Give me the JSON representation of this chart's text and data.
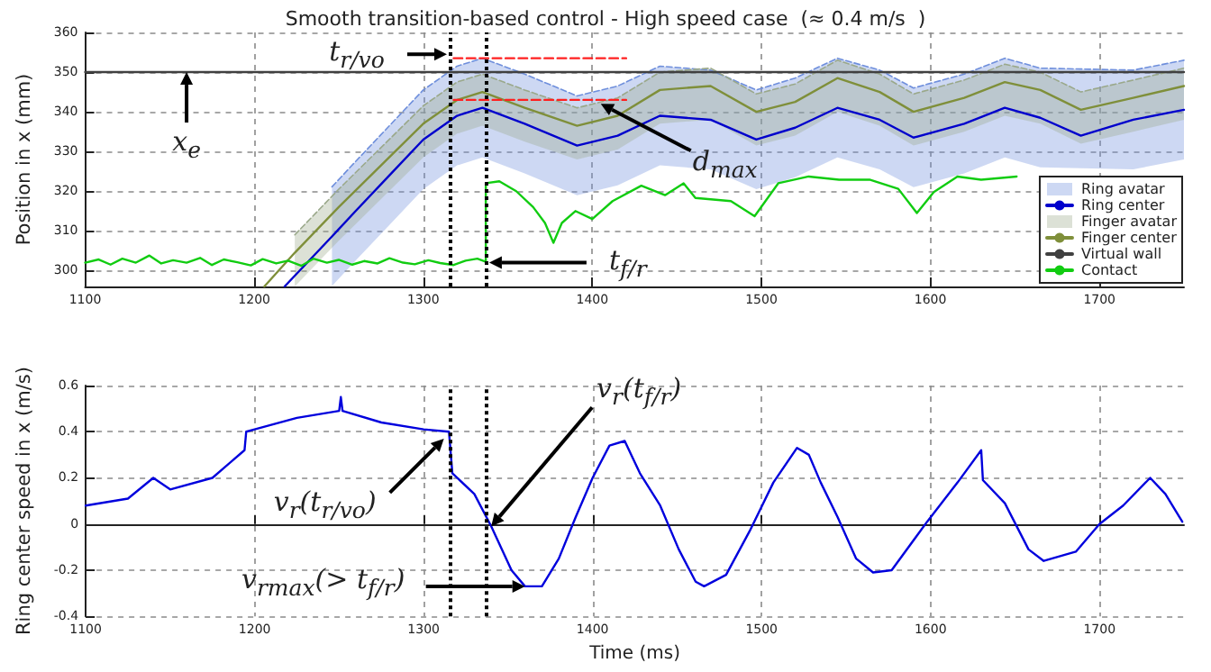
{
  "chart_data": [
    {
      "type": "line",
      "title": "Smooth transition-based control - High speed case  (≈ 0.4 m/s  )",
      "ylabel": "Position in x (mm)",
      "xlim": [
        1100,
        1750
      ],
      "xticks": [
        1100,
        1200,
        1300,
        1400,
        1500,
        1600,
        1700
      ],
      "ylim": [
        296,
        360
      ],
      "yticks": [
        300,
        310,
        320,
        330,
        340,
        350,
        360
      ],
      "grid": true,
      "legend": "bottom right",
      "ref_lines": [
        {
          "axis": "x",
          "value": 1316,
          "color": "#000000",
          "line_style": "dotted"
        },
        {
          "axis": "x",
          "value": 1337,
          "color": "#000000",
          "line_style": "dotted"
        }
      ],
      "annotations": [
        {
          "text": "t$_{r/vo}$",
          "x": 1314,
          "y": 354.5
        },
        {
          "text": "x$_{e}$",
          "x": 1160,
          "y": 350
        },
        {
          "text": "d$_{max}$",
          "x": 1405,
          "y": 342
        },
        {
          "text": "t$_{f/r}$",
          "x": 1339,
          "y": 302
        }
      ],
      "series": [
        {
          "name": "Ring avatar",
          "color": "#6f8fdc",
          "line_style": "dashed",
          "x": [
            1246,
            1260,
            1280,
            1300,
            1320,
            1335,
            1360,
            1391,
            1415,
            1440,
            1470,
            1497,
            1520,
            1545,
            1570,
            1590,
            1620,
            1644,
            1665,
            1720,
            1750
          ],
          "lower": [
            296.1,
            302.5,
            311.5,
            320.5,
            326.5,
            328.5,
            324.5,
            319,
            321.5,
            326.5,
            325.5,
            320.5,
            323.5,
            328.5,
            325.5,
            321,
            324.5,
            328.5,
            326,
            325.5,
            328
          ],
          "values": [
            321.1,
            327.5,
            336.5,
            345.5,
            351.5,
            353.5,
            349.5,
            344,
            346.5,
            351.5,
            350.5,
            345.5,
            348.5,
            353.5,
            350.5,
            346,
            349.5,
            353.5,
            351,
            350.5,
            353
          ],
          "upper": [
            321.1,
            327.5,
            336.5,
            345.5,
            351.5,
            353.5,
            349.5,
            344,
            346.5,
            351.5,
            350.5,
            345.5,
            348.5,
            353.5,
            350.5,
            346,
            349.5,
            353.5,
            351,
            350.5,
            353
          ]
        },
        {
          "name": "Ring center",
          "color": "#0000cc",
          "x": [
            1218,
            1246,
            1260,
            1280,
            1300,
            1320,
            1335,
            1360,
            1391,
            1415,
            1440,
            1470,
            1497,
            1520,
            1545,
            1570,
            1590,
            1620,
            1644,
            1665,
            1689,
            1720,
            1750
          ],
          "values": [
            296,
            308.6,
            315,
            324,
            333,
            339,
            341,
            337,
            331.5,
            334,
            339,
            338,
            333,
            336,
            341,
            338,
            333.5,
            337,
            341,
            338.5,
            334,
            338,
            340.5
          ]
        },
        {
          "name": "Finger avatar",
          "color": "#9aa88a",
          "line_style": "dashed",
          "x": [
            1224,
            1250,
            1300,
            1320,
            1335,
            1360,
            1391,
            1415,
            1440,
            1470,
            1497,
            1520,
            1545,
            1570,
            1590,
            1620,
            1644,
            1665,
            1689,
            1720,
            1750
          ],
          "lower": [
            296,
            307.5,
            328.5,
            334.5,
            336.5,
            332.5,
            328,
            330.5,
            337,
            338,
            331.5,
            334,
            340,
            336.5,
            331.5,
            335,
            339,
            337,
            332,
            335,
            338
          ],
          "values": [
            309,
            320.5,
            341.5,
            347.5,
            349.5,
            345.5,
            341,
            343.5,
            350,
            351,
            344.5,
            347,
            353,
            349.5,
            344.5,
            348,
            352,
            350,
            345,
            348,
            351
          ],
          "upper": [
            309,
            320.5,
            341.5,
            347.5,
            349.5,
            345.5,
            341,
            343.5,
            350,
            351,
            344.5,
            347,
            353,
            349.5,
            344.5,
            348,
            352,
            350,
            345,
            348,
            351
          ]
        },
        {
          "name": "Finger center",
          "color": "#7f8f3a",
          "x": [
            1206,
            1224,
            1250,
            1300,
            1320,
            1335,
            1360,
            1391,
            1415,
            1440,
            1470,
            1497,
            1520,
            1545,
            1570,
            1590,
            1620,
            1644,
            1665,
            1689,
            1720,
            1750
          ],
          "values": [
            296,
            304.5,
            316,
            337,
            343,
            345,
            341,
            336.5,
            339,
            345.5,
            346.5,
            340,
            342.5,
            348.5,
            345,
            340,
            343.5,
            347.5,
            345.5,
            340.5,
            343.5,
            346.5
          ]
        },
        {
          "name": "Virtual wall",
          "color": "#404040",
          "x": [
            1100,
            1750
          ],
          "values": [
            350,
            350
          ]
        },
        {
          "name": "Contact",
          "color": "#11cc11",
          "x": [
            1100,
            1108,
            1115,
            1122,
            1130,
            1138,
            1145,
            1152,
            1160,
            1168,
            1175,
            1182,
            1190,
            1198,
            1205,
            1213,
            1220,
            1228,
            1235,
            1243,
            1250,
            1258,
            1265,
            1273,
            1280,
            1288,
            1295,
            1303,
            1310,
            1318,
            1325,
            1332,
            1337,
            1337,
            1345,
            1355,
            1365,
            1372,
            1377,
            1382,
            1390,
            1400,
            1412,
            1429,
            1443,
            1454,
            1461,
            1482,
            1496,
            1510,
            1528,
            1546,
            1564,
            1581,
            1592,
            1602,
            1616,
            1630,
            1651
          ],
          "values": [
            302,
            302.8,
            301.5,
            303,
            302,
            303.8,
            301.8,
            302.6,
            302,
            303.2,
            301.4,
            302.8,
            302.1,
            301.3,
            302.9,
            301.8,
            302.5,
            301.2,
            303,
            302,
            302.7,
            301.5,
            302.4,
            301.8,
            303.1,
            302,
            301.6,
            302.6,
            301.9,
            301.4,
            302.5,
            303,
            302.2,
            322,
            322.5,
            320,
            316,
            312,
            307,
            312,
            315,
            313,
            317.5,
            321.4,
            319,
            322,
            318.3,
            317.5,
            313.7,
            322,
            323.7,
            322.9,
            322.9,
            320.6,
            314.5,
            319.8,
            323.7,
            322.9,
            323.7
          ]
        },
        {
          "color": "#ff2020",
          "line_style": "dashed",
          "x": [
            1318,
            1420
          ],
          "values": [
            353.5,
            353.5
          ]
        },
        {
          "color": "#ff2020",
          "line_style": "dashed",
          "x": [
            1318,
            1420
          ],
          "values": [
            343,
            343
          ]
        }
      ]
    },
    {
      "type": "line",
      "xlabel": "Time (ms)",
      "ylabel": "Ring center speed in x (m/s)",
      "xlim": [
        1100,
        1750
      ],
      "xticks": [
        1100,
        1200,
        1300,
        1400,
        1500,
        1600,
        1700
      ],
      "ylim": [
        -0.4,
        0.6
      ],
      "yticks": [
        -0.4,
        -0.2,
        0,
        0.2,
        0.4,
        0.6
      ],
      "grid": true,
      "ref_lines": [
        {
          "axis": "x",
          "value": 1316,
          "color": "#000000",
          "line_style": "dotted"
        },
        {
          "axis": "x",
          "value": 1337,
          "color": "#000000",
          "line_style": "dotted"
        }
      ],
      "annotations": [
        {
          "text": "v$_{r}$(t$_{r/vo}$)",
          "x": 1312,
          "y": 0.37
        },
        {
          "text": "v$_{r}$(t$_{f/r}$)",
          "x": 1340,
          "y": -0.01
        },
        {
          "text": "v$_{r}$$_{max}$(> t$_{f/r}$)",
          "x": 1360,
          "y": -0.27
        }
      ],
      "series": [
        {
          "color": "#0000dd",
          "x": [
            1100,
            1125,
            1140,
            1150,
            1175,
            1194,
            1195,
            1200,
            1225,
            1250,
            1251,
            1252,
            1275,
            1300,
            1315,
            1317,
            1330,
            1340,
            1352,
            1360,
            1370,
            1380,
            1390,
            1400,
            1410,
            1419,
            1428,
            1440,
            1451,
            1461,
            1466,
            1479,
            1493,
            1507,
            1521,
            1528,
            1535,
            1545,
            1556,
            1566,
            1577,
            1598,
            1616,
            1630,
            1631,
            1644,
            1658,
            1667,
            1686,
            1700,
            1714,
            1730,
            1739,
            1749
          ],
          "values": [
            0.08,
            0.11,
            0.2,
            0.15,
            0.2,
            0.32,
            0.4,
            0.41,
            0.46,
            0.49,
            0.55,
            0.49,
            0.44,
            0.41,
            0.4,
            0.22,
            0.13,
            -0.01,
            -0.2,
            -0.27,
            -0.27,
            -0.15,
            0.03,
            0.2,
            0.34,
            0.36,
            0.22,
            0.08,
            -0.11,
            -0.25,
            -0.27,
            -0.22,
            -0.03,
            0.18,
            0.33,
            0.3,
            0.18,
            0.03,
            -0.15,
            -0.21,
            -0.2,
            0.01,
            0.18,
            0.32,
            0.19,
            0.09,
            -0.11,
            -0.16,
            -0.12,
            0,
            0.08,
            0.2,
            0.13,
            0.01
          ]
        }
      ]
    }
  ]
}
